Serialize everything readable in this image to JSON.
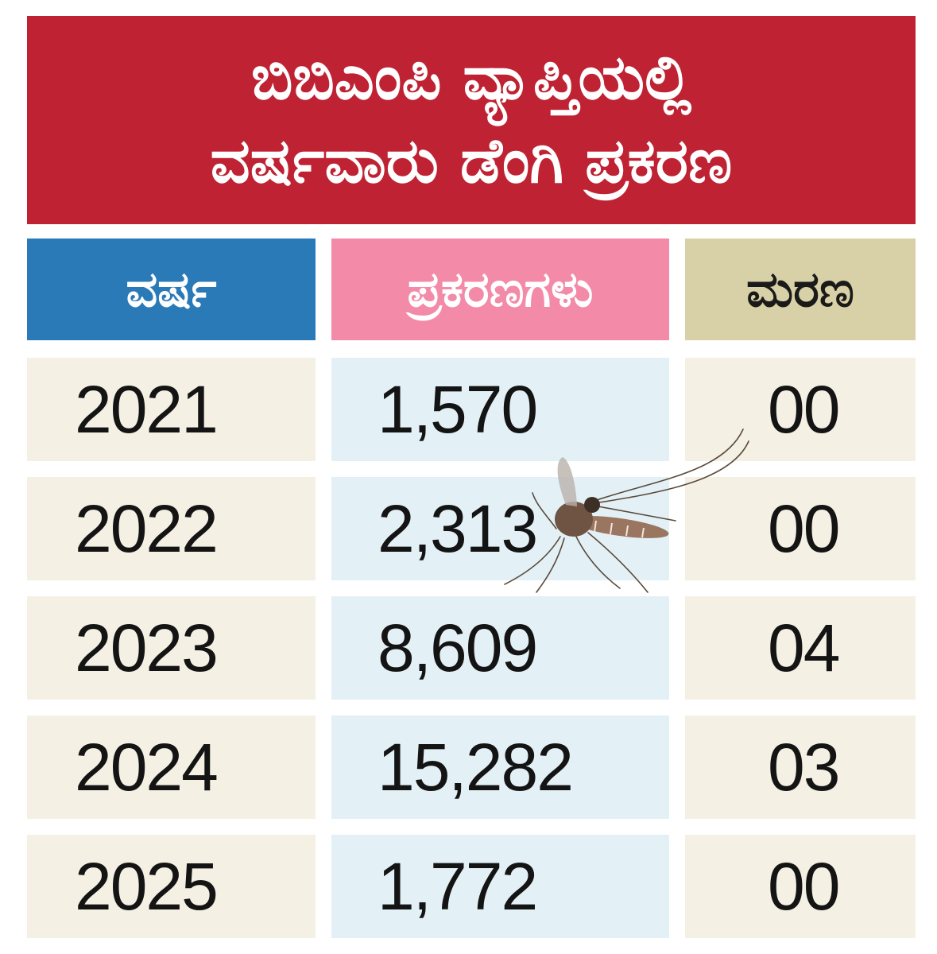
{
  "chart_data": {
    "type": "table",
    "title_lines": [
      "ಬಿಬಿಎಂಪಿ ವ್ಯಾಪ್ತಿಯಲ್ಲಿ",
      "ವರ್ಷವಾರು ಡೆಂಗಿ ಪ್ರಕರಣ"
    ],
    "columns": [
      "ವರ್ಷ",
      "ಪ್ರಕರಣಗಳು",
      "ಮರಣ"
    ],
    "rows": [
      {
        "year": "2021",
        "cases": "1,570",
        "deaths": "00"
      },
      {
        "year": "2022",
        "cases": "2,313",
        "deaths": "00"
      },
      {
        "year": "2023",
        "cases": "8,609",
        "deaths": "04"
      },
      {
        "year": "2024",
        "cases": "15,282",
        "deaths": "03"
      },
      {
        "year": "2025",
        "cases": "1,772",
        "deaths": "00"
      }
    ]
  },
  "colors": {
    "title_bg": "#bf2233",
    "year_header": "#2b7ab8",
    "cases_header": "#f28aa8",
    "deaths_header": "#d8d0a6",
    "year_cell": "#f4f0e3",
    "cases_cell": "#e3f1f7",
    "deaths_cell": "#f4f0e3"
  },
  "decoration": {
    "icon": "mosquito-icon"
  }
}
